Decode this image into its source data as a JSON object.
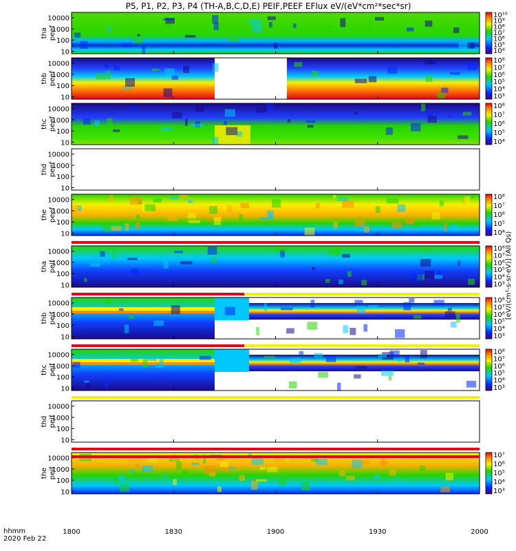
{
  "chart_data": {
    "type": "heatmap",
    "title": "P5, P1, P2, P3, P4 (TH-A,B,C,D,E) PEIF,PEEF EFlux eV/(eV*cm²*sec*sr)",
    "time_label": "hhmm",
    "date_label": "2020 Feb 22",
    "x_ticks": [
      "1800",
      "1830",
      "1900",
      "1930",
      "2000"
    ],
    "colorbar_label": "[eV/(cm²-s-sr-eV)] (All Qs)",
    "panels": [
      {
        "label": [
          "tha",
          "peef"
        ],
        "y_ticks": [
          "10000",
          "1000",
          "100",
          "10"
        ],
        "cbar_ticks": [
          "10¹⁰",
          "10⁹",
          "10⁸",
          "10⁷",
          "10⁶",
          "10⁵",
          "10⁴"
        ],
        "has_data": true
      },
      {
        "label": [
          "thb",
          "peef"
        ],
        "y_ticks": [
          "10000",
          "1000",
          "100",
          "10"
        ],
        "cbar_ticks": [
          "10⁸",
          "10⁷",
          "10⁶",
          "10⁵",
          "10⁴",
          "10³"
        ],
        "has_data": true
      },
      {
        "label": [
          "thc",
          "peef"
        ],
        "y_ticks": [
          "10000",
          "1000",
          "100",
          "10"
        ],
        "cbar_ticks": [
          "10⁸",
          "10⁷",
          "10⁶",
          "10⁵",
          "10⁴"
        ],
        "has_data": true
      },
      {
        "label": [
          "thd",
          "peef"
        ],
        "y_ticks": [
          "10000",
          "1000",
          "100",
          "10"
        ],
        "cbar_ticks": [],
        "has_data": false
      },
      {
        "label": [
          "the",
          "peef"
        ],
        "y_ticks": [
          "10000",
          "1000",
          "100",
          "10"
        ],
        "cbar_ticks": [
          "10⁸",
          "10⁷",
          "10⁶",
          "10⁵",
          "10⁴"
        ],
        "has_data": true
      },
      {
        "label": [
          "tha",
          "peif"
        ],
        "y_ticks": [
          "10000",
          "1000",
          "100",
          "10"
        ],
        "cbar_ticks": [
          "10⁸",
          "10⁷",
          "10⁶",
          "10⁵",
          "10⁴",
          "10³"
        ],
        "has_data": true
      },
      {
        "label": [
          "thb",
          "peif"
        ],
        "y_ticks": [
          "10000",
          "1000",
          "100",
          "10"
        ],
        "cbar_ticks": [
          "10⁸",
          "10⁷",
          "10⁶",
          "10⁵",
          "10⁴",
          "10³"
        ],
        "has_data": true
      },
      {
        "label": [
          "thc",
          "peif"
        ],
        "y_ticks": [
          "10000",
          "1000",
          "100",
          "10"
        ],
        "cbar_ticks": [
          "10⁸",
          "10⁷",
          "10⁶",
          "10⁵",
          "10⁴",
          "10³"
        ],
        "has_data": true
      },
      {
        "label": [
          "thd",
          "peif"
        ],
        "y_ticks": [
          "10000",
          "1000",
          "100",
          "10"
        ],
        "cbar_ticks": [],
        "has_data": false
      },
      {
        "label": [
          "the",
          "peif"
        ],
        "y_ticks": [
          "10000",
          "1000",
          "100",
          "10"
        ],
        "cbar_ticks": [
          "10⁷",
          "10⁶",
          "10⁵",
          "10⁴",
          "10³"
        ],
        "has_data": true
      }
    ]
  },
  "colors": {
    "red": "#e8001a",
    "orange": "#ff8c00",
    "yellow": "#f5f000",
    "green": "#26d400",
    "cyan": "#00c8ff",
    "blue": "#0028ff",
    "navy": "#1a0a8c"
  }
}
